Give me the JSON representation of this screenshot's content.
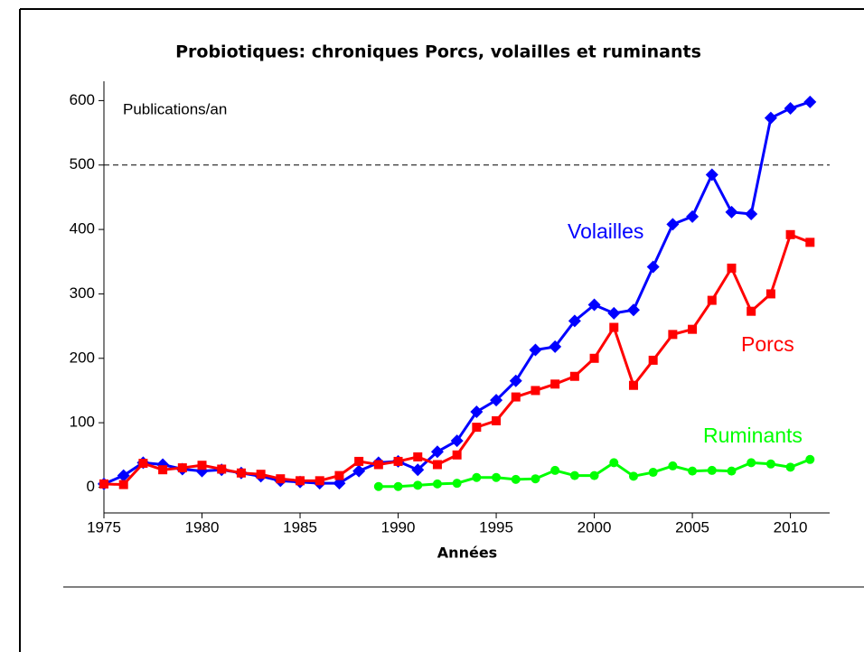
{
  "chart_data": {
    "type": "line",
    "title": "Probiotiques: chroniques Porcs, volailles et ruminants",
    "y_label": "Publications/an",
    "x_label": "Années",
    "x": [
      1975,
      1976,
      1977,
      1978,
      1979,
      1980,
      1981,
      1982,
      1983,
      1984,
      1985,
      1986,
      1987,
      1988,
      1989,
      1990,
      1991,
      1992,
      1993,
      1994,
      1995,
      1996,
      1997,
      1998,
      1999,
      2000,
      2001,
      2002,
      2003,
      2004,
      2005,
      2006,
      2007,
      2008,
      2009,
      2010,
      2011
    ],
    "series": [
      {
        "name": "Volailles",
        "color": "#0000ff",
        "marker": "diamond",
        "values": [
          5,
          18,
          38,
          35,
          28,
          25,
          27,
          22,
          17,
          10,
          8,
          6,
          6,
          25,
          38,
          40,
          27,
          55,
          72,
          117,
          135,
          165,
          213,
          218,
          258,
          283,
          270,
          275,
          342,
          408,
          420,
          485,
          427,
          424,
          573,
          588,
          598
        ]
      },
      {
        "name": "Porcs",
        "color": "#ff0000",
        "marker": "square",
        "values": [
          5,
          4,
          37,
          27,
          30,
          34,
          28,
          22,
          20,
          13,
          10,
          10,
          18,
          40,
          35,
          40,
          47,
          35,
          50,
          93,
          103,
          140,
          150,
          160,
          172,
          200,
          248,
          158,
          197,
          237,
          245,
          290,
          340,
          273,
          300,
          392,
          380
        ]
      },
      {
        "name": "Ruminants",
        "color": "#00ff00",
        "marker": "circle",
        "values": [
          null,
          null,
          null,
          null,
          null,
          null,
          null,
          null,
          null,
          null,
          null,
          null,
          null,
          null,
          1,
          1,
          3,
          5,
          6,
          15,
          15,
          12,
          13,
          26,
          18,
          18,
          38,
          17,
          23,
          33,
          25,
          26,
          25,
          38,
          36,
          31,
          43
        ]
      }
    ],
    "xlim": [
      1975,
      2012
    ],
    "xticks": [
      1975,
      1980,
      1985,
      1990,
      1995,
      2000,
      2005,
      2010
    ],
    "ylim": [
      -40,
      630
    ],
    "yticks": [
      0,
      100,
      200,
      300,
      400,
      500,
      600
    ],
    "reference_line": 500
  }
}
